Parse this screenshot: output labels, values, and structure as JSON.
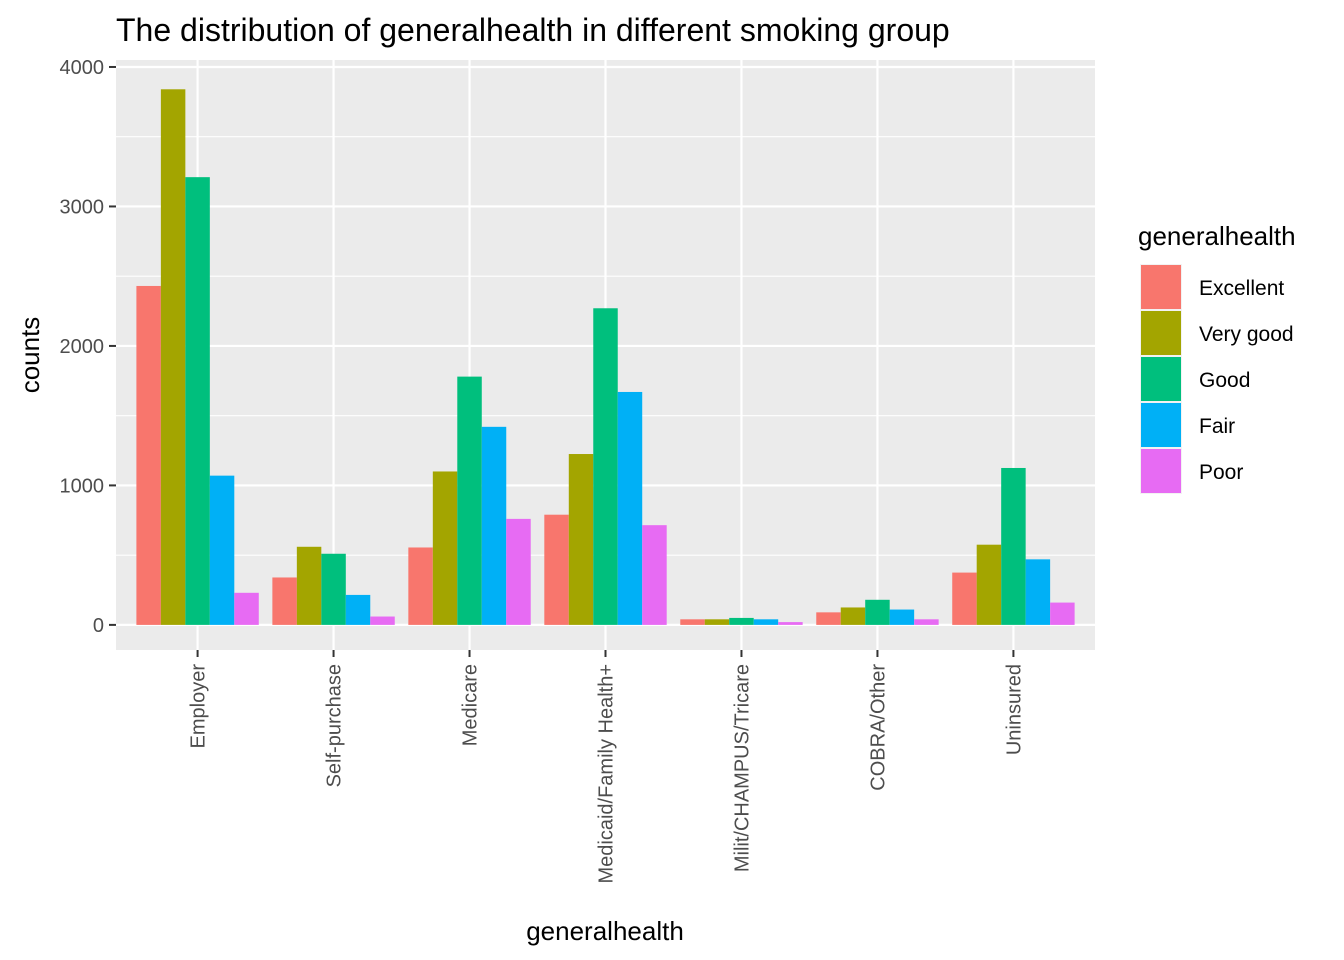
{
  "chart_data": {
    "type": "bar",
    "title": "The distribution of generalhealth in different smoking group",
    "xlabel": "generalhealth",
    "ylabel": "counts",
    "ylim": [
      -180,
      4050
    ],
    "yticks": [
      0,
      1000,
      2000,
      3000,
      4000
    ],
    "grid": true,
    "background": "#EBEBEB",
    "legend": {
      "title": "generalhealth",
      "placement": "right"
    },
    "categories": [
      "Employer",
      "Self-purchase",
      "Medicare",
      "Medicaid/Family Health+",
      "Milit/CHAMPUS/Tricare",
      "COBRA/Other",
      "Uninsured"
    ],
    "series": [
      {
        "name": "Excellent",
        "color": "#F8766D",
        "values": [
          2430,
          340,
          555,
          790,
          40,
          90,
          375
        ]
      },
      {
        "name": "Very good",
        "color": "#A3A500",
        "values": [
          3840,
          560,
          1100,
          1225,
          40,
          125,
          575
        ]
      },
      {
        "name": "Good",
        "color": "#00BF7D",
        "values": [
          3210,
          510,
          1780,
          2270,
          50,
          180,
          1125
        ]
      },
      {
        "name": "Fair",
        "color": "#00B0F6",
        "values": [
          1070,
          215,
          1420,
          1670,
          40,
          110,
          470
        ]
      },
      {
        "name": "Poor",
        "color": "#E76BF3",
        "values": [
          230,
          60,
          760,
          715,
          20,
          40,
          160
        ]
      }
    ]
  }
}
